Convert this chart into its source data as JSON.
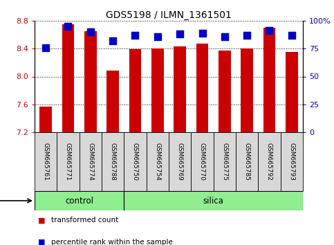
{
  "title": "GDS5198 / ILMN_1361501",
  "samples": [
    "GSM665761",
    "GSM665771",
    "GSM665774",
    "GSM665788",
    "GSM665750",
    "GSM665754",
    "GSM665769",
    "GSM665770",
    "GSM665775",
    "GSM665785",
    "GSM665792",
    "GSM665793"
  ],
  "groups": [
    "control",
    "control",
    "control",
    "control",
    "silica",
    "silica",
    "silica",
    "silica",
    "silica",
    "silica",
    "silica",
    "silica"
  ],
  "transformed_count": [
    7.57,
    8.75,
    8.65,
    8.08,
    8.39,
    8.4,
    8.43,
    8.47,
    8.37,
    8.4,
    8.7,
    8.35
  ],
  "percentile_rank": [
    76,
    95,
    90,
    82,
    87,
    86,
    88,
    89,
    86,
    87,
    91,
    87
  ],
  "ylim_left": [
    7.2,
    8.8
  ],
  "ylim_right": [
    0,
    100
  ],
  "yticks_left": [
    7.2,
    7.6,
    8.0,
    8.4,
    8.8
  ],
  "yticks_right": [
    0,
    25,
    50,
    75,
    100
  ],
  "ytick_labels_right": [
    "0",
    "25",
    "50",
    "75",
    "100%"
  ],
  "bar_color": "#cc0000",
  "dot_color": "#0000cc",
  "group_color": "#90ee90",
  "bar_bottom": 7.2,
  "bar_width": 0.55,
  "dot_size": 50,
  "fig_width": 4.83,
  "fig_height": 3.54,
  "control_count": 4,
  "silica_count": 8
}
